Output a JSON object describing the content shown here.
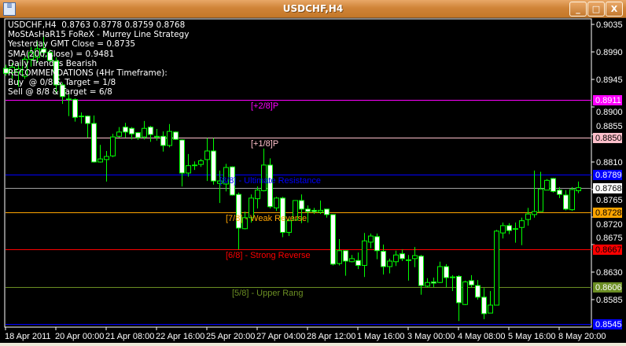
{
  "window": {
    "title": "USDCHF,H4",
    "icon": "metatrader-chart-icon",
    "buttons": {
      "minimize": "_",
      "maximize": "□",
      "close": "X"
    }
  },
  "info_panel": {
    "lines": [
      "USDCHF,H4  0.8763 0.8778 0.8759 0.8768",
      "MoStAsHaR15 FoReX - Murrey Line Strategy",
      "Yesterday GMT Close = 0.8735",
      "SMA(200,Close) = 0.9481",
      "Daily Trend is Bearish",
      "RECOMMENDATIONS (4Hr Timeframe):",
      "Buy  @ 0/8 & Target = 1/8",
      "Sell @ 8/8 & Target = 6/8"
    ]
  },
  "colors": {
    "background": "#000000",
    "bull_candle": "#000000",
    "bear_candle": "#ffffff",
    "candle_outline": "#00ff00",
    "axis": "#ffffff"
  },
  "chart_data": {
    "type": "candlestick",
    "symbol": "USDCHF",
    "timeframe": "H4",
    "ylim": [
      0.8525,
      0.905
    ],
    "y_ticks": [
      "0.9035",
      "0.8990",
      "0.8945",
      "0.8900",
      "0.8855",
      "0.8810",
      "0.8765",
      "0.8720",
      "0.8675",
      "0.8630",
      "0.8585"
    ],
    "x_ticks": [
      {
        "label": "18 Apr 2011",
        "bar": 0
      },
      {
        "label": "20 Apr 00:00",
        "bar": 8
      },
      {
        "label": "21 Apr 08:00",
        "bar": 16
      },
      {
        "label": "22 Apr 16:00",
        "bar": 24
      },
      {
        "label": "25 Apr 20:00",
        "bar": 32
      },
      {
        "label": "27 Apr 04:00",
        "bar": 40
      },
      {
        "label": "28 Apr 12:00",
        "bar": 48
      },
      {
        "label": "1 May 16:00",
        "bar": 56
      },
      {
        "label": "3 May 00:00",
        "bar": 64
      },
      {
        "label": "4 May 08:00",
        "bar": 72
      },
      {
        "label": "5 May 16:00",
        "bar": 80
      },
      {
        "label": "8 May 20:00",
        "bar": 88
      }
    ],
    "levels": [
      {
        "price": 0.8911,
        "label": "[+2/8]P",
        "price_label": "0.8911",
        "color": "#ff00ff",
        "box_text": "#ffffff",
        "label_bar": 39
      },
      {
        "price": 0.885,
        "label": "[+1/8]P",
        "price_label": "0.8850",
        "color": "#ffc0cb",
        "box_text": "#000000",
        "label_bar": 39
      },
      {
        "price": 0.8789,
        "label": "[8/8] - Ultimate Resistance",
        "price_label": "0.8789",
        "color": "#0000ff",
        "box_text": "#ffffff",
        "label_bar": 34
      },
      {
        "price": 0.8768,
        "label": "",
        "price_label": "0.8768",
        "color": "#a0a0a0",
        "box_bg": "#ffffff",
        "box_text": "#000000",
        "label_bar": 0
      },
      {
        "price": 0.8728,
        "label": "[7/8] - Weak Reverse",
        "price_label": "0.8728",
        "color": "#ffa500",
        "box_text": "#000000",
        "label_bar": 35
      },
      {
        "price": 0.8667,
        "label": "[6/8] - Strong Reverse",
        "price_label": "0.8667",
        "color": "#ff0000",
        "box_text": "#000000",
        "label_bar": 35
      },
      {
        "price": 0.8606,
        "label": "[5/8] - Upper Rang",
        "price_label": "0.8606",
        "color": "#6b8e23",
        "box_text": "#ffffff",
        "label_bar": 36
      },
      {
        "price": 0.8545,
        "label": "",
        "price_label": "0.8545",
        "color": "#0000ff",
        "box_text": "#ffffff",
        "label_bar": 0
      }
    ],
    "candles": [
      [
        0.8963,
        0.8969,
        0.8951,
        0.8955
      ],
      [
        0.8956,
        0.8972,
        0.8946,
        0.8965
      ],
      [
        0.8957,
        0.8972,
        0.8933,
        0.8962
      ],
      [
        0.895,
        0.8982,
        0.8946,
        0.8978
      ],
      [
        0.8978,
        0.8998,
        0.8966,
        0.8989
      ],
      [
        0.8981,
        0.9007,
        0.8972,
        0.8995
      ],
      [
        0.8995,
        0.9017,
        0.8981,
        0.8989
      ],
      [
        0.8989,
        0.8994,
        0.8972,
        0.8976
      ],
      [
        0.8975,
        0.8981,
        0.8921,
        0.8936
      ],
      [
        0.8936,
        0.894,
        0.8905,
        0.8917
      ],
      [
        0.8913,
        0.8921,
        0.8885,
        0.8912
      ],
      [
        0.8912,
        0.8914,
        0.8876,
        0.8883
      ],
      [
        0.8885,
        0.8891,
        0.8873,
        0.8884
      ],
      [
        0.8885,
        0.8886,
        0.885,
        0.8873
      ],
      [
        0.8873,
        0.8886,
        0.8809,
        0.881
      ],
      [
        0.881,
        0.8838,
        0.8809,
        0.8815
      ],
      [
        0.8814,
        0.8828,
        0.8778,
        0.8819
      ],
      [
        0.882,
        0.8856,
        0.8818,
        0.8851
      ],
      [
        0.8852,
        0.8867,
        0.885,
        0.8859
      ],
      [
        0.8867,
        0.8874,
        0.885,
        0.8859
      ],
      [
        0.8865,
        0.8867,
        0.8847,
        0.8856
      ],
      [
        0.8858,
        0.8859,
        0.8846,
        0.885
      ],
      [
        0.8851,
        0.8877,
        0.8847,
        0.8865
      ],
      [
        0.8867,
        0.8869,
        0.8843,
        0.8855
      ],
      [
        0.8852,
        0.8864,
        0.8845,
        0.8852
      ],
      [
        0.8852,
        0.886,
        0.8827,
        0.8837
      ],
      [
        0.8837,
        0.8872,
        0.8834,
        0.886
      ],
      [
        0.8859,
        0.886,
        0.8846,
        0.8847
      ],
      [
        0.8846,
        0.8847,
        0.877,
        0.8792
      ],
      [
        0.8792,
        0.8823,
        0.8786,
        0.8804
      ],
      [
        0.8805,
        0.8811,
        0.8797,
        0.8805
      ],
      [
        0.8806,
        0.8815,
        0.8802,
        0.8812
      ],
      [
        0.8814,
        0.8849,
        0.8779,
        0.8828
      ],
      [
        0.8828,
        0.8849,
        0.8773,
        0.8779
      ],
      [
        0.8775,
        0.8796,
        0.8743,
        0.8779
      ],
      [
        0.8774,
        0.8807,
        0.8762,
        0.8801
      ],
      [
        0.8802,
        0.8803,
        0.8755,
        0.8756
      ],
      [
        0.8757,
        0.876,
        0.8667,
        0.8702
      ],
      [
        0.8701,
        0.8729,
        0.87,
        0.8719
      ],
      [
        0.8719,
        0.8757,
        0.8711,
        0.8751
      ],
      [
        0.875,
        0.877,
        0.8734,
        0.8764
      ],
      [
        0.8763,
        0.8832,
        0.8762,
        0.8805
      ],
      [
        0.8805,
        0.8816,
        0.8734,
        0.8737
      ],
      [
        0.8735,
        0.8753,
        0.873,
        0.8751
      ],
      [
        0.8751,
        0.8753,
        0.8687,
        0.8695
      ],
      [
        0.8695,
        0.8717,
        0.8689,
        0.8714
      ],
      [
        0.8715,
        0.8747,
        0.8714,
        0.8747
      ],
      [
        0.8747,
        0.8757,
        0.871,
        0.8733
      ],
      [
        0.8733,
        0.8739,
        0.8711,
        0.8729
      ],
      [
        0.8731,
        0.8735,
        0.8725,
        0.8729
      ],
      [
        0.8728,
        0.8747,
        0.8725,
        0.8731
      ],
      [
        0.8733,
        0.8733,
        0.8719,
        0.8724
      ],
      [
        0.8724,
        0.8724,
        0.8641,
        0.8643
      ],
      [
        0.8644,
        0.8684,
        0.8641,
        0.8665
      ],
      [
        0.8665,
        0.8665,
        0.8624,
        0.8648
      ],
      [
        0.8647,
        0.8658,
        0.8646,
        0.8652
      ],
      [
        0.8649,
        0.8662,
        0.8635,
        0.8641
      ],
      [
        0.8641,
        0.8694,
        0.8622,
        0.8681
      ],
      [
        0.8679,
        0.8693,
        0.8669,
        0.8689
      ],
      [
        0.8688,
        0.8693,
        0.8651,
        0.8665
      ],
      [
        0.8664,
        0.8675,
        0.8626,
        0.8639
      ],
      [
        0.8639,
        0.8652,
        0.8628,
        0.8648
      ],
      [
        0.8647,
        0.8665,
        0.864,
        0.8658
      ],
      [
        0.866,
        0.8667,
        0.8648,
        0.8652
      ],
      [
        0.865,
        0.8658,
        0.8616,
        0.865
      ],
      [
        0.8652,
        0.8671,
        0.8638,
        0.8657
      ],
      [
        0.8656,
        0.8658,
        0.8593,
        0.8608
      ],
      [
        0.8607,
        0.862,
        0.8605,
        0.8613
      ],
      [
        0.8614,
        0.8621,
        0.8605,
        0.8612
      ],
      [
        0.8613,
        0.8647,
        0.8612,
        0.8639
      ],
      [
        0.8639,
        0.8643,
        0.8605,
        0.8621
      ],
      [
        0.8622,
        0.8625,
        0.8599,
        0.8622
      ],
      [
        0.8623,
        0.8625,
        0.855,
        0.858
      ],
      [
        0.8577,
        0.8616,
        0.8576,
        0.8614
      ],
      [
        0.8616,
        0.8625,
        0.8605,
        0.8609
      ],
      [
        0.8608,
        0.8617,
        0.8585,
        0.8589
      ],
      [
        0.8589,
        0.8604,
        0.8553,
        0.8562
      ],
      [
        0.8563,
        0.8599,
        0.8563,
        0.8576
      ],
      [
        0.8576,
        0.8699,
        0.8576,
        0.8697
      ],
      [
        0.8694,
        0.8711,
        0.8685,
        0.8706
      ],
      [
        0.8706,
        0.871,
        0.8692,
        0.8698
      ],
      [
        0.8701,
        0.8711,
        0.8678,
        0.8701
      ],
      [
        0.8703,
        0.8719,
        0.8674,
        0.8714
      ],
      [
        0.8716,
        0.8735,
        0.8706,
        0.8725
      ],
      [
        0.8724,
        0.8796,
        0.8719,
        0.8729
      ],
      [
        0.8729,
        0.8794,
        0.8729,
        0.8766
      ],
      [
        0.8764,
        0.8782,
        0.8764,
        0.878
      ],
      [
        0.8783,
        0.8784,
        0.876,
        0.8762
      ],
      [
        0.8764,
        0.8769,
        0.8751,
        0.8757
      ],
      [
        0.8756,
        0.8764,
        0.8731,
        0.8733
      ],
      [
        0.8732,
        0.8769,
        0.873,
        0.8765
      ],
      [
        0.8763,
        0.8778,
        0.8759,
        0.8768
      ]
    ]
  }
}
